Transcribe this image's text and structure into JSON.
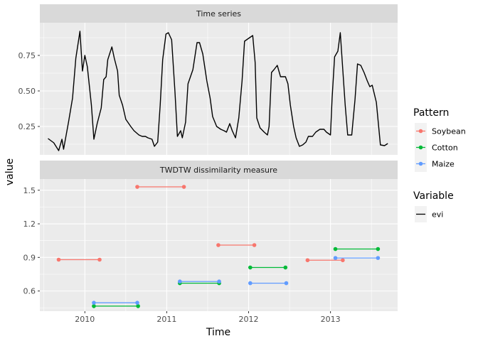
{
  "chart_data": {
    "type": "line",
    "xlabel": "Time",
    "ylabel": "value",
    "xlim": [
      2009.45,
      2013.82
    ],
    "x_ticks": [
      {
        "value": 2010,
        "label": "2010"
      },
      {
        "value": 2011,
        "label": "2011"
      },
      {
        "value": 2012,
        "label": "2012"
      },
      {
        "value": 2013,
        "label": "2013"
      }
    ],
    "panels": [
      {
        "title": "Time series",
        "ylim": [
          0.05,
          0.98
        ],
        "y_ticks": [
          {
            "value": 0.25,
            "label": "0.25"
          },
          {
            "value": 0.5,
            "label": "0.50"
          },
          {
            "value": 0.75,
            "label": "0.75"
          }
        ],
        "series": [
          {
            "name": "evi",
            "color": "#000000",
            "points": [
              [
                2009.55,
                0.165
              ],
              [
                2009.62,
                0.135
              ],
              [
                2009.68,
                0.08
              ],
              [
                2009.72,
                0.16
              ],
              [
                2009.74,
                0.09
              ],
              [
                2009.8,
                0.28
              ],
              [
                2009.85,
                0.45
              ],
              [
                2009.89,
                0.73
              ],
              [
                2009.94,
                0.92
              ],
              [
                2009.97,
                0.64
              ],
              [
                2010.0,
                0.75
              ],
              [
                2010.03,
                0.67
              ],
              [
                2010.08,
                0.4
              ],
              [
                2010.11,
                0.16
              ],
              [
                2010.15,
                0.27
              ],
              [
                2010.2,
                0.38
              ],
              [
                2010.23,
                0.58
              ],
              [
                2010.26,
                0.6
              ],
              [
                2010.28,
                0.72
              ],
              [
                2010.33,
                0.81
              ],
              [
                2010.36,
                0.73
              ],
              [
                2010.4,
                0.64
              ],
              [
                2010.42,
                0.47
              ],
              [
                2010.46,
                0.4
              ],
              [
                2010.5,
                0.3
              ],
              [
                2010.56,
                0.25
              ],
              [
                2010.6,
                0.22
              ],
              [
                2010.66,
                0.19
              ],
              [
                2010.7,
                0.18
              ],
              [
                2010.74,
                0.18
              ],
              [
                2010.77,
                0.17
              ],
              [
                2010.82,
                0.16
              ],
              [
                2010.85,
                0.11
              ],
              [
                2010.89,
                0.14
              ],
              [
                2010.92,
                0.4
              ],
              [
                2010.95,
                0.72
              ],
              [
                2010.99,
                0.9
              ],
              [
                2011.02,
                0.91
              ],
              [
                2011.06,
                0.86
              ],
              [
                2011.1,
                0.5
              ],
              [
                2011.13,
                0.18
              ],
              [
                2011.17,
                0.22
              ],
              [
                2011.19,
                0.17
              ],
              [
                2011.23,
                0.28
              ],
              [
                2011.26,
                0.55
              ],
              [
                2011.32,
                0.65
              ],
              [
                2011.37,
                0.84
              ],
              [
                2011.4,
                0.84
              ],
              [
                2011.44,
                0.76
              ],
              [
                2011.49,
                0.57
              ],
              [
                2011.53,
                0.45
              ],
              [
                2011.56,
                0.32
              ],
              [
                2011.61,
                0.25
              ],
              [
                2011.66,
                0.23
              ],
              [
                2011.7,
                0.22
              ],
              [
                2011.73,
                0.21
              ],
              [
                2011.77,
                0.27
              ],
              [
                2011.8,
                0.22
              ],
              [
                2011.84,
                0.17
              ],
              [
                2011.88,
                0.31
              ],
              [
                2011.92,
                0.57
              ],
              [
                2011.95,
                0.85
              ],
              [
                2012.0,
                0.87
              ],
              [
                2012.05,
                0.89
              ],
              [
                2012.08,
                0.7
              ],
              [
                2012.1,
                0.31
              ],
              [
                2012.14,
                0.24
              ],
              [
                2012.19,
                0.21
              ],
              [
                2012.23,
                0.19
              ],
              [
                2012.25,
                0.25
              ],
              [
                2012.28,
                0.63
              ],
              [
                2012.31,
                0.65
              ],
              [
                2012.35,
                0.68
              ],
              [
                2012.39,
                0.6
              ],
              [
                2012.45,
                0.6
              ],
              [
                2012.48,
                0.55
              ],
              [
                2012.51,
                0.4
              ],
              [
                2012.55,
                0.25
              ],
              [
                2012.58,
                0.17
              ],
              [
                2012.62,
                0.11
              ],
              [
                2012.66,
                0.12
              ],
              [
                2012.7,
                0.14
              ],
              [
                2012.73,
                0.18
              ],
              [
                2012.78,
                0.18
              ],
              [
                2012.82,
                0.21
              ],
              [
                2012.87,
                0.23
              ],
              [
                2012.92,
                0.23
              ],
              [
                2012.95,
                0.21
              ],
              [
                2013.0,
                0.19
              ],
              [
                2013.02,
                0.45
              ],
              [
                2013.05,
                0.74
              ],
              [
                2013.09,
                0.78
              ],
              [
                2013.12,
                0.91
              ],
              [
                2013.15,
                0.65
              ],
              [
                2013.18,
                0.4
              ],
              [
                2013.21,
                0.19
              ],
              [
                2013.26,
                0.19
              ],
              [
                2013.3,
                0.44
              ],
              [
                2013.33,
                0.69
              ],
              [
                2013.37,
                0.68
              ],
              [
                2013.41,
                0.63
              ],
              [
                2013.45,
                0.57
              ],
              [
                2013.48,
                0.53
              ],
              [
                2013.51,
                0.54
              ],
              [
                2013.56,
                0.42
              ],
              [
                2013.61,
                0.12
              ],
              [
                2013.66,
                0.115
              ],
              [
                2013.7,
                0.13
              ]
            ]
          }
        ]
      },
      {
        "title": "TWDTW dissimilarity measure",
        "ylim": [
          0.42,
          1.6
        ],
        "y_ticks": [
          {
            "value": 0.6,
            "label": "0.6"
          },
          {
            "value": 0.9,
            "label": "0.9"
          },
          {
            "value": 1.2,
            "label": "1.2"
          },
          {
            "value": 1.5,
            "label": "1.5"
          }
        ],
        "series": [
          {
            "name": "Soybean",
            "color": "#F8766D",
            "segments": [
              [
                [
                  2009.68,
                  0.88
                ],
                [
                  2010.18,
                  0.88
                ]
              ],
              [
                [
                  2010.64,
                  1.53
                ],
                [
                  2011.21,
                  1.53
                ]
              ],
              [
                [
                  2011.63,
                  1.01
                ],
                [
                  2012.07,
                  1.01
                ]
              ],
              [
                [
                  2012.72,
                  0.875
                ],
                [
                  2013.15,
                  0.875
                ]
              ]
            ]
          },
          {
            "name": "Cotton",
            "color": "#00BA38",
            "segments": [
              [
                [
                  2010.11,
                  0.465
                ],
                [
                  2010.65,
                  0.465
                ]
              ],
              [
                [
                  2011.16,
                  0.67
                ],
                [
                  2011.64,
                  0.67
                ]
              ],
              [
                [
                  2012.02,
                  0.81
                ],
                [
                  2012.45,
                  0.81
                ]
              ],
              [
                [
                  2013.06,
                  0.975
                ],
                [
                  2013.58,
                  0.975
                ]
              ]
            ]
          },
          {
            "name": "Maize",
            "color": "#619CFF",
            "segments": [
              [
                [
                  2010.11,
                  0.495
                ],
                [
                  2010.64,
                  0.495
                ]
              ],
              [
                [
                  2011.16,
                  0.685
                ],
                [
                  2011.64,
                  0.685
                ]
              ],
              [
                [
                  2012.02,
                  0.67
                ],
                [
                  2012.46,
                  0.67
                ]
              ],
              [
                [
                  2013.06,
                  0.895
                ],
                [
                  2013.58,
                  0.895
                ]
              ]
            ]
          }
        ]
      }
    ],
    "legends": [
      {
        "title": "Pattern",
        "items": [
          {
            "label": "Soybean",
            "color": "#F8766D",
            "symbol": "point-line"
          },
          {
            "label": "Cotton",
            "color": "#00BA38",
            "symbol": "point-line"
          },
          {
            "label": "Maize",
            "color": "#619CFF",
            "symbol": "point-line"
          }
        ]
      },
      {
        "title": "Variable",
        "items": [
          {
            "label": "evi",
            "color": "#000000",
            "symbol": "line"
          }
        ]
      }
    ],
    "legend_position": "right",
    "grid": true,
    "colors": {
      "panel_background": "#EBEBEB",
      "strip_background": "#D9D9D9",
      "grid": "#FFFFFF"
    }
  }
}
